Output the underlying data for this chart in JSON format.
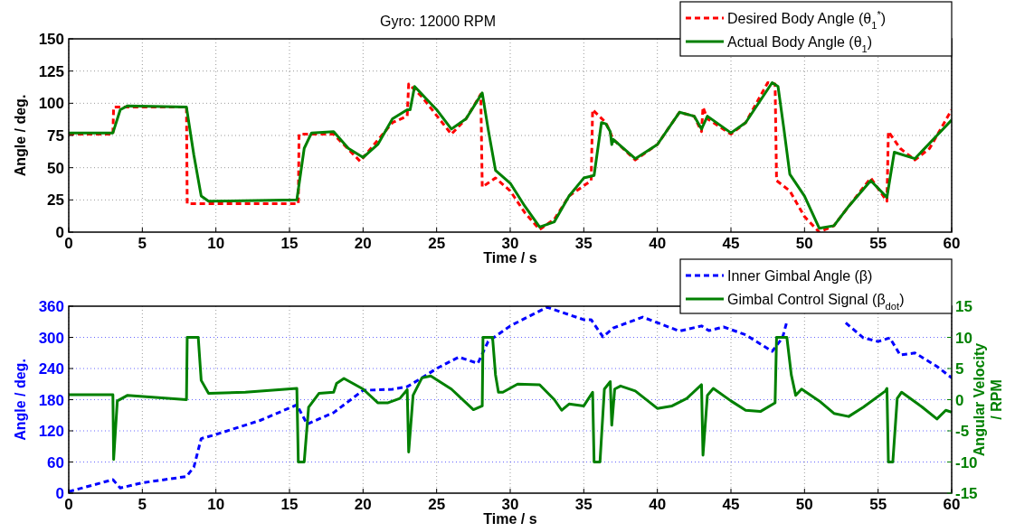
{
  "chart_data": [
    {
      "type": "line",
      "title": "Gyro: 12000 RPM",
      "xlabel": "Time / s",
      "ylabel": "Angle / deg.",
      "xlim": [
        0,
        60
      ],
      "xticks": [
        0,
        5,
        10,
        15,
        20,
        25,
        30,
        35,
        40,
        45,
        50,
        55,
        60
      ],
      "ylim": [
        0,
        150
      ],
      "yticks": [
        0,
        25,
        50,
        75,
        100,
        125,
        150
      ],
      "grid": true,
      "legend": "top right",
      "series": [
        {
          "name": "Desired Body Angle (θ$_{1}$$^{*}$)",
          "color": "#ff0000",
          "line_style": "dashed",
          "x": [
            0,
            3,
            3.05,
            8,
            8.05,
            15.6,
            15.65,
            18,
            19.8,
            22,
            23,
            23.1,
            24,
            26,
            27,
            28,
            28.1,
            29,
            30,
            31,
            32,
            33,
            34,
            35.5,
            35.6,
            36.5,
            37,
            38.5,
            40,
            41.5,
            42.5,
            43,
            43.1,
            43.4,
            45,
            46,
            47.5,
            48,
            48.1,
            49,
            50,
            51,
            52,
            53,
            54.5,
            55.6,
            55.7,
            56.5,
            57.5,
            58.5,
            60
          ],
          "values": [
            76,
            76,
            97,
            97,
            22,
            22,
            76,
            76,
            55,
            85,
            90,
            115,
            105,
            76,
            88,
            107,
            35,
            42,
            32,
            15,
            2,
            10,
            28,
            40,
            95,
            85,
            72,
            56,
            68,
            93,
            90,
            78,
            97,
            88,
            76,
            85,
            116,
            115,
            40,
            32,
            12,
            0,
            5,
            20,
            42,
            24,
            78,
            65,
            56,
            65,
            95
          ]
        },
        {
          "name": "Actual Body Angle (θ$_{1}$)",
          "color": "#008000",
          "line_style": "solid",
          "x": [
            0,
            3,
            3.5,
            4,
            8,
            8.5,
            9,
            9.5,
            15.5,
            16,
            16.5,
            18,
            19,
            20,
            21,
            22,
            23,
            23.2,
            23.5,
            25,
            26,
            27,
            28.1,
            28.5,
            29,
            30,
            31,
            32,
            33,
            34,
            35,
            35.7,
            36.2,
            36.5,
            36.8,
            36.9,
            37,
            38.5,
            40,
            41.5,
            42.5,
            43,
            43.4,
            45,
            46,
            47.8,
            48.2,
            48.6,
            49,
            50,
            51,
            52,
            53,
            54.5,
            55.6,
            56.1,
            57.5,
            59,
            60
          ],
          "values": [
            77,
            77,
            95,
            98,
            97,
            60,
            28,
            24,
            25,
            65,
            77,
            78,
            65,
            58,
            68,
            88,
            95,
            95,
            113,
            95,
            80,
            88,
            108,
            80,
            48,
            38,
            20,
            4,
            8,
            28,
            42,
            44,
            85,
            84,
            78,
            68,
            72,
            57,
            68,
            93,
            90,
            80,
            90,
            77,
            85,
            116,
            113,
            80,
            45,
            28,
            3,
            5,
            20,
            40,
            27,
            62,
            57,
            75,
            87
          ]
        }
      ]
    },
    {
      "type": "line",
      "xlabel": "Time / s",
      "ylabel": "Angle / deg.",
      "y2label": "Angular Velocity / RPM",
      "xlim": [
        0,
        60
      ],
      "xticks": [
        0,
        5,
        10,
        15,
        20,
        25,
        30,
        35,
        40,
        45,
        50,
        55,
        60
      ],
      "ylim": [
        0,
        360
      ],
      "yticks": [
        0,
        60,
        120,
        180,
        240,
        300,
        360
      ],
      "y2lim": [
        -15,
        15
      ],
      "y2ticks": [
        -15,
        -10,
        -5,
        0,
        5,
        10,
        15
      ],
      "grid": true,
      "legend": "top right",
      "series": [
        {
          "name": "Inner Gimbal Angle (β)",
          "color": "#0000ff",
          "line_style": "dashed",
          "x": [
            0,
            3,
            3.5,
            5,
            8,
            8.5,
            9,
            10,
            13,
            15.5,
            16.2,
            18,
            20,
            22,
            23,
            24,
            25,
            26.5,
            27.8,
            28.5,
            30,
            32.5,
            35,
            35.5,
            36.3,
            37,
            39,
            41.5,
            43,
            43.5,
            44.5,
            46,
            47.8,
            48.5,
            48.8,
            50,
            51,
            52.8,
            54,
            55,
            55.8,
            56.5,
            57.5,
            59,
            60
          ],
          "values": [
            3,
            26,
            10,
            20,
            32,
            50,
            105,
            113,
            140,
            170,
            133,
            155,
            198,
            200,
            205,
            222,
            240,
            262,
            250,
            292,
            322,
            358,
            334,
            334,
            301,
            318,
            339,
            312,
            322,
            313,
            320,
            305,
            273,
            299,
            330,
            null,
            null,
            328,
            299,
            292,
            299,
            266,
            270,
            244,
            222
          ]
        },
        {
          "name": "Gimbal Control Signal (β$_{dot}$)",
          "color": "#008000",
          "line_style": "solid",
          "axis": "y2",
          "x": [
            0,
            3,
            3.05,
            3.3,
            4,
            8,
            8.05,
            8.8,
            9,
            9.5,
            12,
            15.5,
            15.6,
            16,
            16.3,
            17,
            18,
            18.2,
            18.7,
            20,
            21,
            21.7,
            22.5,
            23,
            23.1,
            23.4,
            24,
            24.6,
            26,
            27.5,
            28.1,
            28.15,
            28.8,
            29,
            29.2,
            29.5,
            30.5,
            32,
            33,
            33.5,
            34,
            35,
            35.6,
            35.7,
            36.1,
            36.4,
            36.8,
            36.9,
            37.1,
            37.5,
            38.5,
            40,
            41,
            42,
            43,
            43.1,
            43.4,
            43.8,
            45,
            46,
            47,
            48,
            48.1,
            48.8,
            49.1,
            49.4,
            49.8,
            51,
            52,
            53,
            54,
            55.5,
            55.6,
            55.7,
            56,
            56.3,
            56.6,
            58,
            59,
            59.6,
            60
          ],
          "values": [
            0.8,
            0.8,
            -9.6,
            -0.2,
            0.7,
            0,
            10,
            10,
            3.1,
            1,
            1.2,
            1.8,
            -10,
            -10,
            -1.2,
            1,
            1.2,
            2.6,
            3.4,
            1.7,
            -0.5,
            -0.5,
            0.2,
            1.6,
            -8.4,
            0.7,
            3.5,
            3.8,
            1.7,
            -1.6,
            -1,
            10,
            10,
            4,
            1.2,
            1.2,
            2.5,
            2.4,
            0,
            -1.7,
            -0.7,
            -1,
            1.2,
            -10,
            -10,
            1.7,
            2.9,
            -4.1,
            1.7,
            2.2,
            1.4,
            -1.4,
            -1,
            0.2,
            2.4,
            -8.9,
            0.7,
            1.8,
            -0.2,
            -1.7,
            -1.9,
            -0.5,
            10,
            10,
            4,
            0.7,
            1.7,
            -0.2,
            -2.2,
            -2.7,
            -1.2,
            1.4,
            1.8,
            -10,
            -10,
            0.2,
            1.2,
            -1.2,
            -3.1,
            -1.7,
            -2
          ]
        }
      ]
    }
  ]
}
